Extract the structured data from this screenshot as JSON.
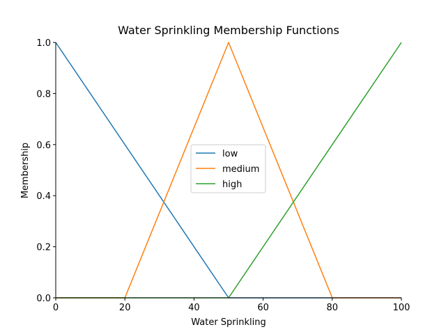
{
  "chart_data": {
    "type": "line",
    "title": "Water Sprinkling Membership Functions",
    "xlabel": "Water Sprinkling",
    "ylabel": "Membership",
    "xlim": [
      0,
      100
    ],
    "ylim": [
      0,
      1
    ],
    "x_ticks": [
      "0",
      "20",
      "40",
      "60",
      "80",
      "100"
    ],
    "y_ticks": [
      "0.0",
      "0.2",
      "0.4",
      "0.6",
      "0.8",
      "1.0"
    ],
    "grid": false,
    "legend_position": "center",
    "series": [
      {
        "name": "low",
        "color": "#1f77b4",
        "x": [
          0,
          50,
          100
        ],
        "y": [
          1,
          0,
          0
        ]
      },
      {
        "name": "medium",
        "color": "#ff7f0e",
        "x": [
          0,
          20,
          50,
          80,
          100
        ],
        "y": [
          0,
          0,
          1,
          0,
          0
        ]
      },
      {
        "name": "high",
        "color": "#2ca02c",
        "x": [
          0,
          50,
          100
        ],
        "y": [
          0,
          0,
          1
        ]
      }
    ]
  }
}
